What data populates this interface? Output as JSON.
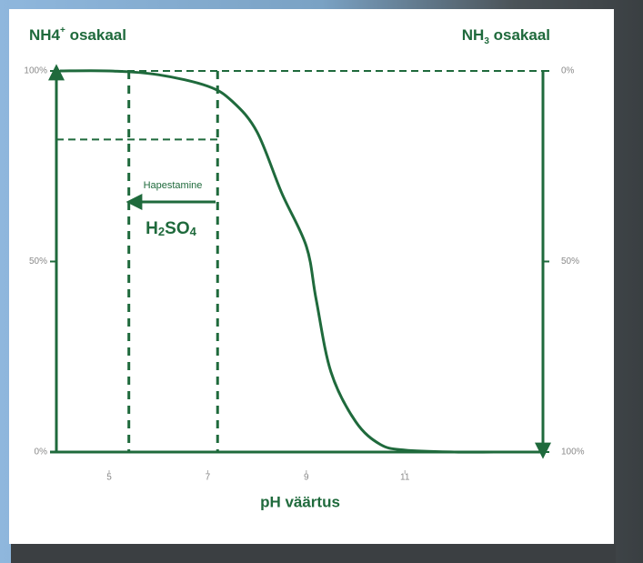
{
  "chart_data": {
    "type": "line",
    "left_title": {
      "main": "NH4",
      "sup": "+",
      "rest": " osakaal"
    },
    "right_title": {
      "main": "NH",
      "sub": "3",
      "rest": " osakaal"
    },
    "xlabel": "pH väärtus",
    "annotation": "Hapestamine",
    "formula": [
      "H",
      "2",
      "SO",
      "4"
    ],
    "x": [
      4,
      5,
      6,
      7,
      7.5,
      8,
      8.5,
      9,
      9.2,
      9.5,
      10,
      10.5,
      11,
      12,
      13
    ],
    "values": [
      100,
      100,
      99,
      96,
      92,
      84,
      68,
      54,
      40,
      21,
      8,
      2,
      0.5,
      0,
      0
    ],
    "color": "#1f6a3c",
    "xlim": [
      3.93,
      13.8
    ],
    "xticks": [
      5,
      7,
      9,
      11
    ],
    "ylim": [
      0,
      100
    ],
    "yticks": [
      {
        "value": 0,
        "label": "0%"
      },
      {
        "value": 50,
        "label": "50%"
      },
      {
        "value": 100,
        "label": "100%"
      }
    ],
    "y2lim": [
      100,
      0
    ],
    "y2ticks": [
      {
        "value": 0,
        "label": "0%"
      },
      {
        "value": 50,
        "label": "50%"
      },
      {
        "value": 100,
        "label": "100%"
      }
    ],
    "vlines": [
      5.4,
      7.2
    ],
    "hlines": [
      82
    ]
  }
}
